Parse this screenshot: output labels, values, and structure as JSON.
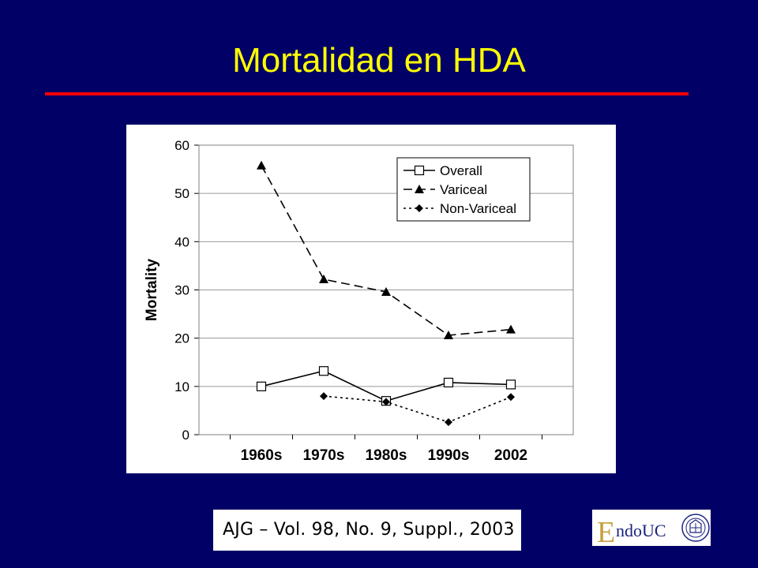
{
  "slide": {
    "title": "Mortalidad en HDA",
    "citation": "AJG – Vol. 98, No. 9, Suppl., 2003"
  },
  "logo": {
    "text_initial": "E",
    "text_rest": "ndoUC",
    "emblem_icon": "university-seal-icon",
    "colors": {
      "initial": "#c8a040",
      "rest": "#1a237e",
      "seal": "#1a237e"
    }
  },
  "colors": {
    "background": "#000066",
    "title": "#ffff00",
    "rule": "#ff0000",
    "chart_bg": "#ffffff"
  },
  "chart_data": {
    "type": "line",
    "categories": [
      "1960s",
      "1970s",
      "1980s",
      "1990s",
      "2002"
    ],
    "ylabel": "Mortality",
    "xlabel": "",
    "ylim": [
      0,
      60
    ],
    "yticks": [
      0,
      10,
      20,
      30,
      40,
      50,
      60
    ],
    "grid": true,
    "legend": "top-right",
    "series": [
      {
        "name": "Overall",
        "values": [
          10,
          13.2,
          7,
          10.8,
          10.4
        ],
        "marker": "square-open",
        "dash": "solid"
      },
      {
        "name": "Variceal",
        "values": [
          55.8,
          32.2,
          29.6,
          20.6,
          21.8
        ],
        "marker": "triangle",
        "dash": "dashed"
      },
      {
        "name": "Non-Variceal",
        "values": [
          null,
          8,
          6.8,
          2.6,
          7.8
        ],
        "marker": "diamond",
        "dash": "dotted"
      }
    ]
  }
}
